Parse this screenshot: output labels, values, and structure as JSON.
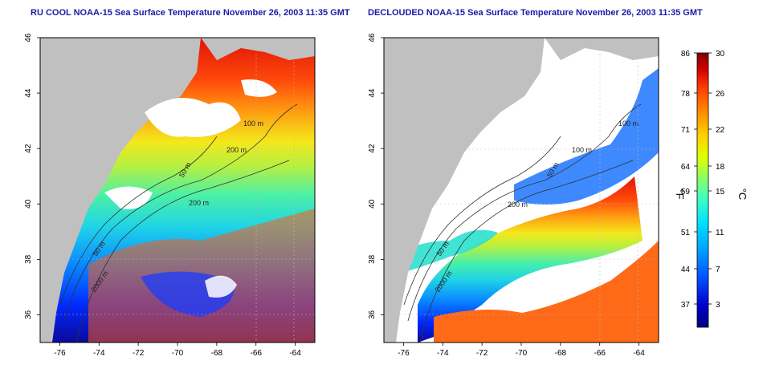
{
  "panels": [
    {
      "title": "RU COOL NOAA-15 Sea Surface Temperature November 26, 2003 11:35 GMT",
      "clouds_removed": false,
      "contour_labels": [
        "100 m",
        "200 m",
        "50 m",
        "200 m",
        "50 m",
        "2000 m"
      ]
    },
    {
      "title": "DECLOUDED NOAA-15 Sea Surface Temperature November 26, 2003 11:35 GMT",
      "clouds_removed": true,
      "contour_labels": [
        "100 m",
        "100 m",
        "50 m",
        "200 m",
        "50 m",
        "2000 m"
      ]
    }
  ],
  "axes": {
    "lon_ticks": [
      "-76",
      "-74",
      "-72",
      "-70",
      "-68",
      "-66",
      "-64"
    ],
    "lat_ticks": [
      "46",
      "44",
      "42",
      "40",
      "38",
      "36"
    ],
    "lon_range": [
      -77,
      -63
    ],
    "lat_range": [
      35,
      46
    ]
  },
  "colorbar": {
    "f_ticks": [
      "86",
      "78",
      "71",
      "64",
      "59",
      "51",
      "44",
      "37"
    ],
    "c_ticks": [
      "30",
      "26",
      "22",
      "18",
      "15",
      "11",
      "7",
      "3"
    ],
    "f_unit": "°F",
    "c_unit": "°C",
    "colors": [
      "#000080",
      "#0000cd",
      "#0050ff",
      "#00a0ff",
      "#00e0ff",
      "#40ffc0",
      "#90ff60",
      "#e0ff00",
      "#ffd000",
      "#ff9000",
      "#ff4000",
      "#d00000",
      "#800000"
    ]
  },
  "map_colors": {
    "land": "#c0c0c0",
    "cloud": "#ffffff",
    "contour": "#333333",
    "grid": "#bbbbbb"
  }
}
